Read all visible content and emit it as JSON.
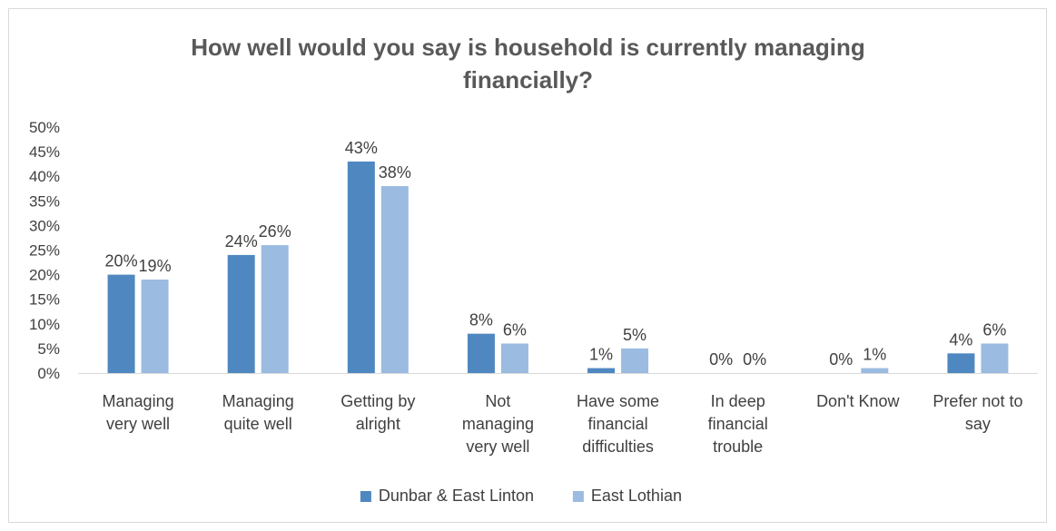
{
  "chart_data": {
    "type": "bar",
    "title_lines": [
      "How well would you say is household is currently managing",
      "financially?"
    ],
    "categories": [
      [
        "Managing",
        "very well"
      ],
      [
        "Managing",
        "quite well"
      ],
      [
        "Getting by",
        "alright"
      ],
      [
        "Not",
        "managing",
        "very well"
      ],
      [
        "Have some",
        "financial",
        "difficulties"
      ],
      [
        "In deep",
        "financial",
        "trouble"
      ],
      [
        "Don't Know"
      ],
      [
        "Prefer not to",
        "say"
      ]
    ],
    "series": [
      {
        "name": "Dunbar & East Linton",
        "color": "#4f88c0",
        "values": [
          20,
          24,
          43,
          8,
          1,
          0,
          0,
          4
        ]
      },
      {
        "name": "East Lothian",
        "color": "#9bbbe0",
        "values": [
          19,
          26,
          38,
          6,
          5,
          0,
          1,
          6
        ]
      }
    ],
    "value_suffix": "%",
    "yticks": [
      "0%",
      "5%",
      "10%",
      "15%",
      "20%",
      "25%",
      "30%",
      "35%",
      "40%",
      "45%",
      "50%"
    ],
    "ylim": [
      0,
      50
    ],
    "grid": false,
    "legend_position": "bottom"
  }
}
